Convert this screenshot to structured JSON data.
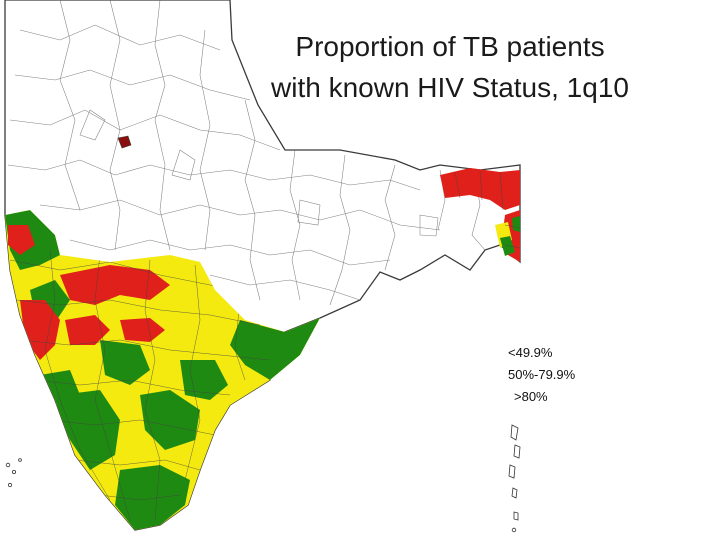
{
  "title": {
    "line1": "Proportion of TB patients",
    "line2": "with known HIV Status, 1q10"
  },
  "legend": [
    {
      "label": "<49.9%",
      "color": "#e0201b",
      "category": "low"
    },
    {
      "label": "50%-79.9%",
      "color": "#f4ea0f",
      "category": "medium"
    },
    {
      "label": ">80%",
      "color": "#1f8a12",
      "category": "high"
    }
  ],
  "colors": {
    "outline": "#3a3a3a",
    "no_data": "#ffffff",
    "background": "#ffffff"
  }
}
